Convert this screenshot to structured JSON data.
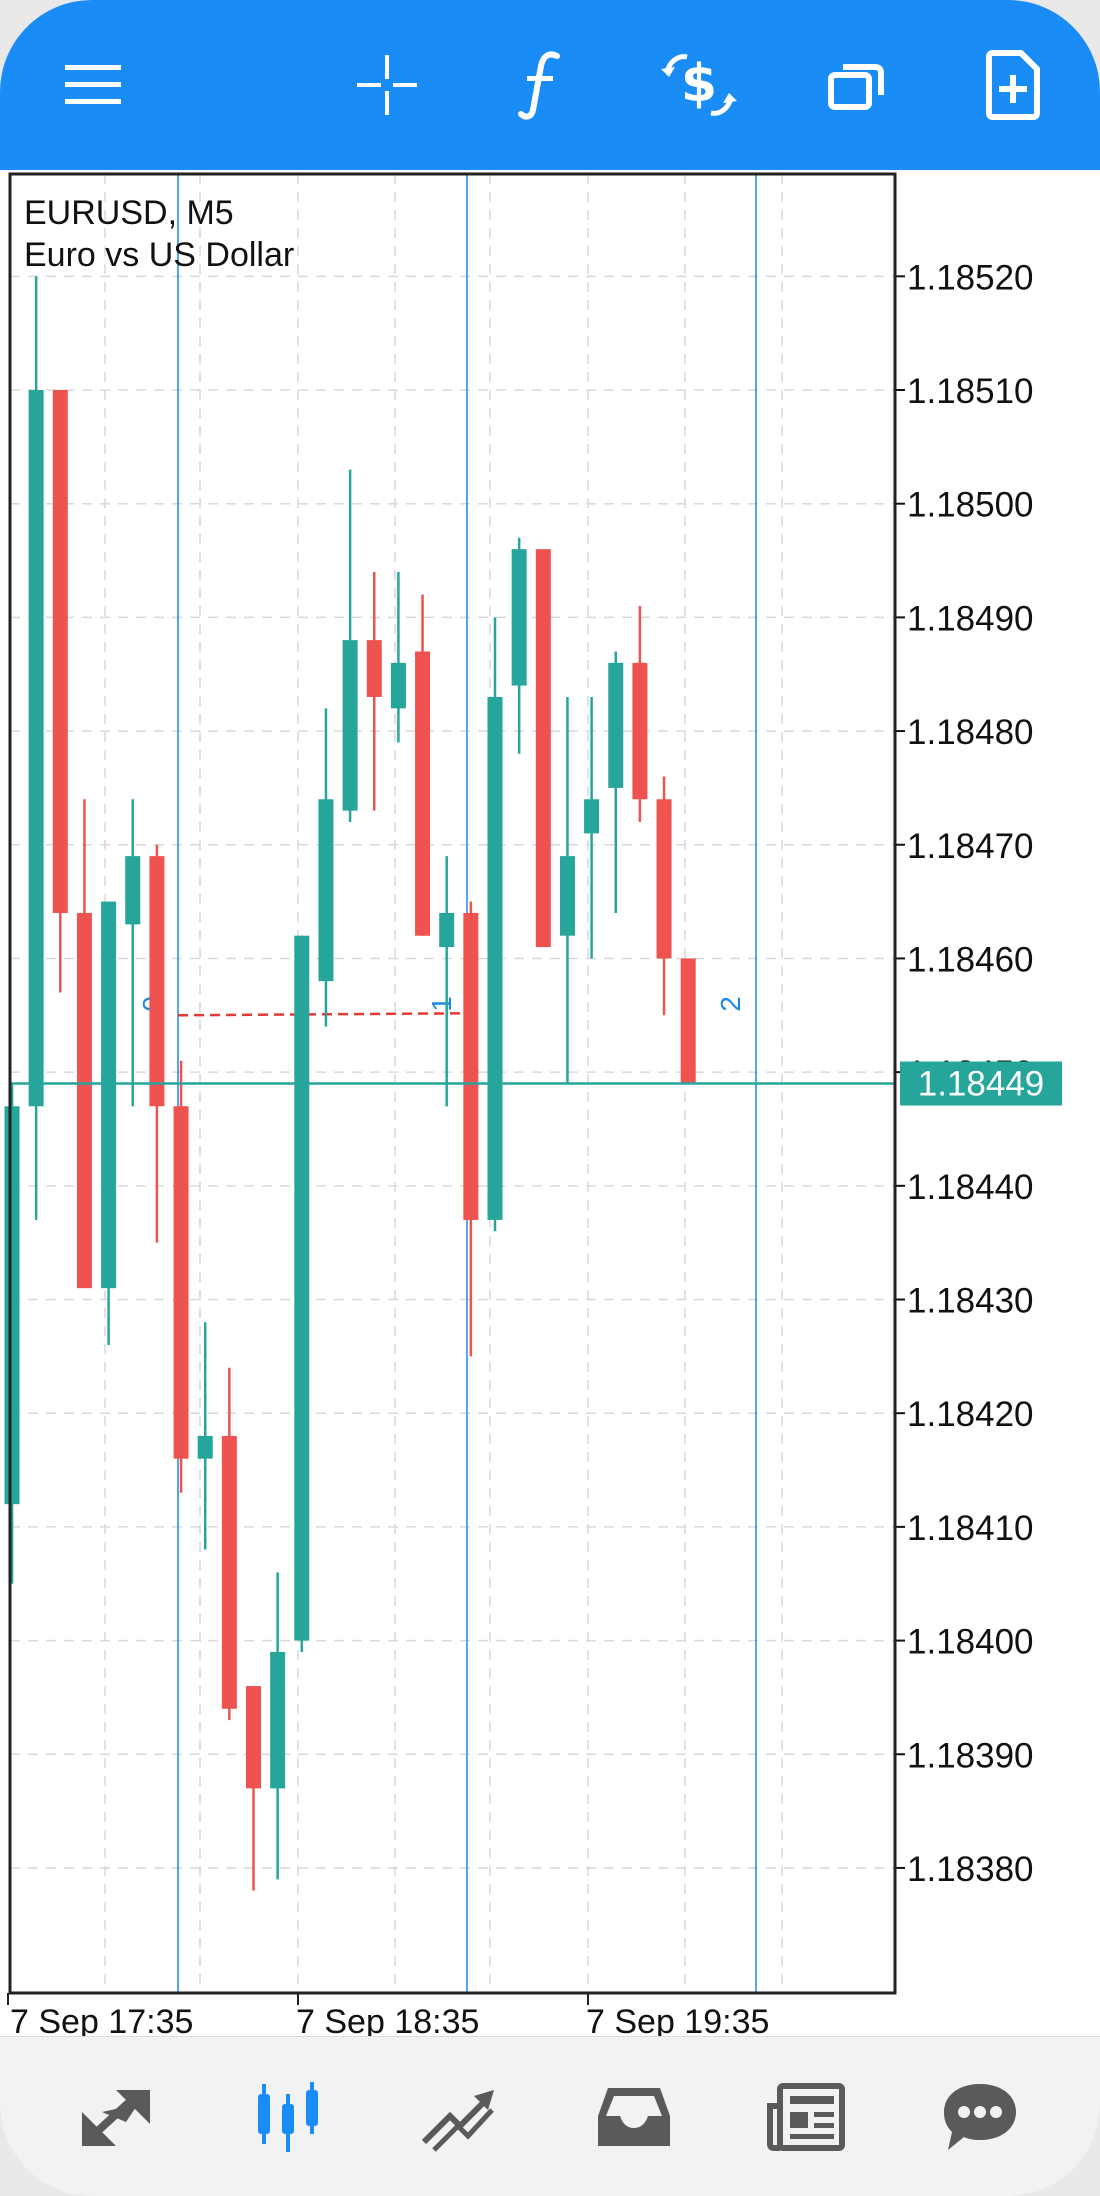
{
  "toolbar": {
    "background": "#1a8cf5",
    "icons": [
      "menu-icon",
      "crosshair-icon",
      "indicators-icon",
      "trade-icon",
      "windows-icon",
      "new-order-icon"
    ]
  },
  "chart_header": {
    "symbol": "EURUSD, M5",
    "description": "Euro vs US Dollar"
  },
  "colors": {
    "bull": "#26a69a",
    "bear": "#ef5350",
    "fibo": "#1e88e5",
    "dashed": "#e53935",
    "grid": "#d9d9d9"
  },
  "current_price_label": "1.18449",
  "chart_data": {
    "type": "candlestick",
    "symbol": "EURUSD",
    "timeframe": "M5",
    "ylim": [
      1.18369,
      1.18529
    ],
    "y_ticks": [
      "1.18520",
      "1.18510",
      "1.18500",
      "1.18490",
      "1.18480",
      "1.18470",
      "1.18460",
      "1.18450",
      "1.18440",
      "1.18430",
      "1.18420",
      "1.18410",
      "1.18400",
      "1.18390",
      "1.18380"
    ],
    "x_labels": [
      "7 Sep 17:35",
      "7 Sep 18:35",
      "7 Sep 19:35"
    ],
    "current_price": 1.18449,
    "fibonacci_time_zones": [
      "0",
      "1",
      "2"
    ],
    "dashed_line_from_zone": "0",
    "dashed_line_to_zone": "1",
    "dashed_line_price": 1.18455,
    "candles": [
      {
        "o": 1.18412,
        "h": 1.18449,
        "l": 1.18405,
        "c": 1.18447
      },
      {
        "o": 1.18447,
        "h": 1.1852,
        "l": 1.18437,
        "c": 1.1851
      },
      {
        "o": 1.1851,
        "h": 1.1851,
        "l": 1.18457,
        "c": 1.18464
      },
      {
        "o": 1.18464,
        "h": 1.18474,
        "l": 1.18431,
        "c": 1.18431
      },
      {
        "o": 1.18431,
        "h": 1.18465,
        "l": 1.18426,
        "c": 1.18465
      },
      {
        "o": 1.18463,
        "h": 1.18474,
        "l": 1.18447,
        "c": 1.18469
      },
      {
        "o": 1.18469,
        "h": 1.1847,
        "l": 1.18435,
        "c": 1.18447
      },
      {
        "o": 1.18447,
        "h": 1.18451,
        "l": 1.18413,
        "c": 1.18416
      },
      {
        "o": 1.18416,
        "h": 1.18428,
        "l": 1.18408,
        "c": 1.18418
      },
      {
        "o": 1.18418,
        "h": 1.18424,
        "l": 1.18393,
        "c": 1.18394
      },
      {
        "o": 1.18396,
        "h": 1.18396,
        "l": 1.18378,
        "c": 1.18387
      },
      {
        "o": 1.18387,
        "h": 1.18406,
        "l": 1.18379,
        "c": 1.18399
      },
      {
        "o": 1.184,
        "h": 1.18462,
        "l": 1.18399,
        "c": 1.18462
      },
      {
        "o": 1.18458,
        "h": 1.18482,
        "l": 1.18454,
        "c": 1.18474
      },
      {
        "o": 1.18473,
        "h": 1.18503,
        "l": 1.18472,
        "c": 1.18488
      },
      {
        "o": 1.18488,
        "h": 1.18494,
        "l": 1.18473,
        "c": 1.18483
      },
      {
        "o": 1.18482,
        "h": 1.18494,
        "l": 1.18479,
        "c": 1.18486
      },
      {
        "o": 1.18487,
        "h": 1.18492,
        "l": 1.18462,
        "c": 1.18462
      },
      {
        "o": 1.18461,
        "h": 1.18469,
        "l": 1.18447,
        "c": 1.18464
      },
      {
        "o": 1.18464,
        "h": 1.18465,
        "l": 1.18425,
        "c": 1.18437
      },
      {
        "o": 1.18437,
        "h": 1.1849,
        "l": 1.18436,
        "c": 1.18483
      },
      {
        "o": 1.18484,
        "h": 1.18497,
        "l": 1.18478,
        "c": 1.18496
      },
      {
        "o": 1.18496,
        "h": 1.18496,
        "l": 1.18461,
        "c": 1.18461
      },
      {
        "o": 1.18462,
        "h": 1.18483,
        "l": 1.18449,
        "c": 1.18469
      },
      {
        "o": 1.18471,
        "h": 1.18483,
        "l": 1.1846,
        "c": 1.18474
      },
      {
        "o": 1.18475,
        "h": 1.18487,
        "l": 1.18464,
        "c": 1.18486
      },
      {
        "o": 1.18486,
        "h": 1.18491,
        "l": 1.18472,
        "c": 1.18474
      },
      {
        "o": 1.18474,
        "h": 1.18476,
        "l": 1.18455,
        "c": 1.1846
      },
      {
        "o": 1.1846,
        "h": 1.1846,
        "l": 1.18449,
        "c": 1.18449
      }
    ]
  },
  "bottom_nav": {
    "icons": [
      "quotes-icon",
      "chart-icon",
      "trade-icon",
      "history-icon",
      "news-icon",
      "messages-icon"
    ],
    "active_index": 1,
    "active_color": "#1a8cf5",
    "inactive_color": "#5a5a5a"
  }
}
